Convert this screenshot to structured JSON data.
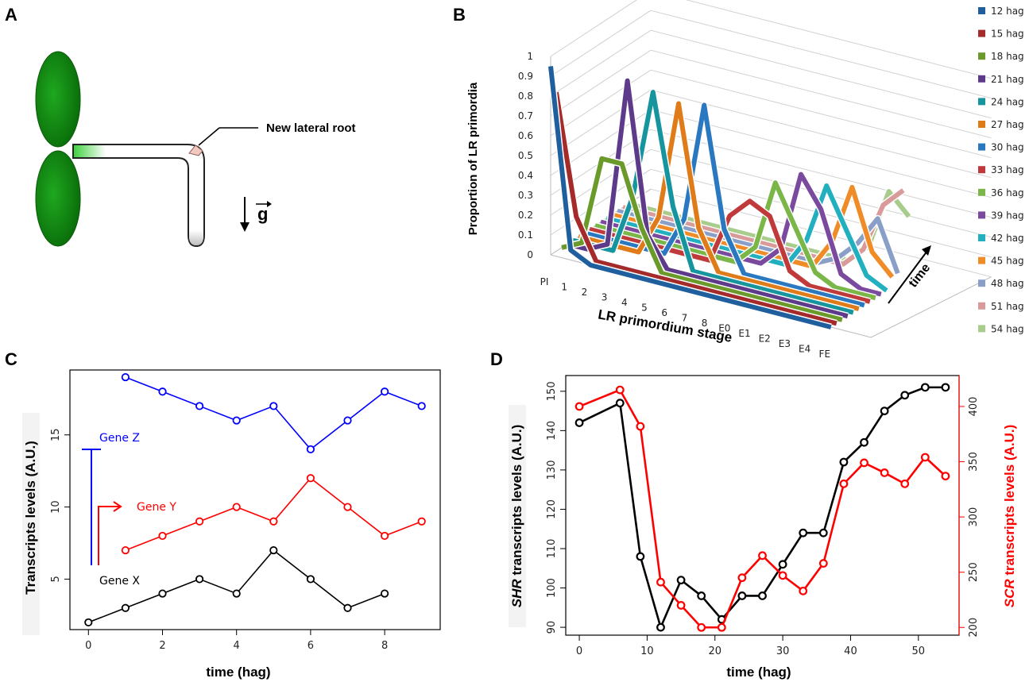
{
  "panels": {
    "a": "A",
    "b": "B",
    "c": "C",
    "d": "D"
  },
  "panel_a": {
    "label_new_root": "New lateral root",
    "label_gravity": "g"
  },
  "colors": {
    "leaf": "#1e8c1e",
    "blue": "#0000ff",
    "red": "#ff0000",
    "black": "#000000",
    "scr": "#ff0000",
    "shr": "#000000"
  },
  "chart_data": [
    {
      "id": "B",
      "type": "line",
      "ylabel": "Proportion of LR primordia",
      "xlabel": "LR primordium stage",
      "zlabel": "time",
      "ylim": [
        0,
        1
      ],
      "yticks": [
        "0",
        "0.1",
        "0.2",
        "0.3",
        "0.4",
        "0.5",
        "0.6",
        "0.7",
        "0.8",
        "0.9",
        "1"
      ],
      "categories": [
        "PI",
        "1",
        "2",
        "3",
        "4",
        "5",
        "6",
        "7",
        "8",
        "E0",
        "E1",
        "E2",
        "E3",
        "E4",
        "FE"
      ],
      "series": [
        {
          "name": "12 hag",
          "color": "#1f5f9e",
          "values": [
            0.95,
            0.05,
            0,
            0,
            0,
            0,
            0,
            0,
            0,
            0,
            0,
            0,
            0,
            0,
            0
          ]
        },
        {
          "name": "15 hag",
          "color": "#a52a2a",
          "values": [
            0.8,
            0.2,
            0,
            0,
            0,
            0,
            0,
            0,
            0,
            0,
            0,
            0,
            0,
            0,
            0
          ]
        },
        {
          "name": "18 hag",
          "color": "#6a9a2a",
          "values": [
            0,
            0.05,
            0.5,
            0.5,
            0.2,
            0,
            0,
            0,
            0,
            0,
            0,
            0,
            0,
            0,
            0
          ]
        },
        {
          "name": "21 hag",
          "color": "#5e3a8a",
          "values": [
            0,
            0,
            0.05,
            0.9,
            0.15,
            0,
            0,
            0,
            0,
            0,
            0,
            0,
            0,
            0,
            0
          ]
        },
        {
          "name": "24 hag",
          "color": "#17959f",
          "values": [
            0,
            0,
            0,
            0.3,
            0.85,
            0.3,
            0,
            0,
            0,
            0,
            0,
            0,
            0,
            0,
            0
          ]
        },
        {
          "name": "27 hag",
          "color": "#e07b1a",
          "values": [
            0,
            0,
            0,
            0,
            0.2,
            0.8,
            0.2,
            0,
            0,
            0,
            0,
            0,
            0,
            0,
            0
          ]
        },
        {
          "name": "30 hag",
          "color": "#2a78c0",
          "values": [
            0,
            0,
            0,
            0,
            0,
            0.2,
            0.8,
            0.2,
            0,
            0,
            0,
            0,
            0,
            0,
            0
          ]
        },
        {
          "name": "33 hag",
          "color": "#c0393b",
          "values": [
            0,
            0,
            0,
            0,
            0,
            0,
            0,
            0.25,
            0.35,
            0.3,
            0.05,
            0,
            0,
            0,
            0
          ]
        },
        {
          "name": "36 hag",
          "color": "#7ab648",
          "values": [
            0,
            0,
            0,
            0,
            0,
            0,
            0,
            0,
            0.1,
            0.45,
            0.25,
            0.05,
            0,
            0,
            0
          ]
        },
        {
          "name": "39 hag",
          "color": "#7a4a9e",
          "values": [
            0,
            0,
            0,
            0,
            0,
            0,
            0,
            0,
            0,
            0.1,
            0.5,
            0.35,
            0.05,
            0,
            0
          ]
        },
        {
          "name": "42 hag",
          "color": "#22b0c0",
          "values": [
            0,
            0,
            0,
            0,
            0,
            0,
            0,
            0,
            0,
            0,
            0.15,
            0.45,
            0.25,
            0.05,
            0
          ]
        },
        {
          "name": "45 hag",
          "color": "#f08c28",
          "values": [
            0,
            0,
            0,
            0,
            0,
            0,
            0,
            0,
            0,
            0,
            0,
            0.15,
            0.45,
            0.15,
            0.05
          ]
        },
        {
          "name": "48 hag",
          "color": "#8a9fc8",
          "values": [
            0,
            0,
            0,
            0,
            0,
            0,
            0,
            0,
            0,
            0,
            0,
            0.05,
            0.15,
            0.3,
            0.05
          ]
        },
        {
          "name": "51 hag",
          "color": "#d99a9a",
          "values": [
            0,
            0,
            0,
            0,
            0,
            0,
            0,
            0,
            0,
            0,
            0,
            0,
            0.1,
            0.35,
            0.45
          ]
        },
        {
          "name": "54 hag",
          "color": "#a8cc8c",
          "values": [
            0,
            0,
            0,
            0,
            0,
            0,
            0,
            0,
            0,
            0,
            0,
            0,
            0.1,
            0.4,
            0.3
          ]
        }
      ]
    },
    {
      "id": "C",
      "type": "line",
      "xlabel": "time  (hag)",
      "ylabel": "Transcripts levels (A.U.)",
      "xlim": [
        -0.5,
        9.5
      ],
      "ylim": [
        1.5,
        19.5
      ],
      "xticks": [
        "0",
        "2",
        "4",
        "6",
        "8"
      ],
      "yticks": [
        "5",
        "10",
        "15"
      ],
      "series": [
        {
          "name": "Gene Z",
          "color": "#0000ff",
          "x": [
            1,
            2,
            3,
            4,
            5,
            6,
            7,
            8,
            9
          ],
          "values": [
            19,
            18,
            17,
            16,
            17,
            14,
            16,
            18,
            17
          ]
        },
        {
          "name": "Gene Y",
          "color": "#ff0000",
          "x": [
            1,
            2,
            3,
            4,
            5,
            6,
            7,
            8,
            9
          ],
          "values": [
            7,
            8,
            9,
            10,
            9,
            12,
            10,
            8,
            9
          ]
        },
        {
          "name": "Gene X",
          "color": "#000000",
          "x": [
            0,
            1,
            2,
            3,
            4,
            5,
            6,
            7,
            8
          ],
          "values": [
            2,
            3,
            4,
            5,
            4,
            7,
            5,
            3,
            4
          ]
        }
      ]
    },
    {
      "id": "D",
      "type": "line",
      "xlabel": "time  (hag)",
      "ylabel_left_italic": "SHR",
      "ylabel_left_rest": " transcripts levels (A.U.)",
      "ylabel_right_italic": "SCR",
      "ylabel_right_rest": " transcripts levels (A.U.)",
      "xlim": [
        -2,
        56
      ],
      "ylim_left": [
        88,
        154
      ],
      "ylim_right": [
        193,
        428
      ],
      "xticks": [
        "0",
        "10",
        "20",
        "30",
        "40",
        "50"
      ],
      "yticks_left": [
        "90",
        "100",
        "110",
        "120",
        "130",
        "140",
        "150"
      ],
      "yticks_right": [
        "200",
        "250",
        "300",
        "350",
        "400"
      ],
      "series": [
        {
          "name": "SHR",
          "axis": "left",
          "color": "#000000",
          "x": [
            0,
            6,
            9,
            12,
            15,
            18,
            21,
            24,
            27,
            30,
            33,
            36,
            39,
            42,
            45,
            48,
            51,
            54
          ],
          "values": [
            142,
            147,
            108,
            90,
            102,
            98,
            92,
            98,
            98,
            106,
            114,
            114,
            132,
            137,
            145,
            149,
            151,
            151
          ]
        },
        {
          "name": "SCR",
          "axis": "right",
          "color": "#ff0000",
          "x": [
            0,
            6,
            9,
            12,
            15,
            18,
            21,
            24,
            27,
            30,
            33,
            36,
            39,
            42,
            45,
            48,
            51,
            54
          ],
          "values": [
            400,
            415,
            382,
            241,
            220,
            200,
            200,
            245,
            265,
            247,
            233,
            258,
            330,
            349,
            340,
            330,
            354,
            337
          ]
        }
      ]
    }
  ]
}
